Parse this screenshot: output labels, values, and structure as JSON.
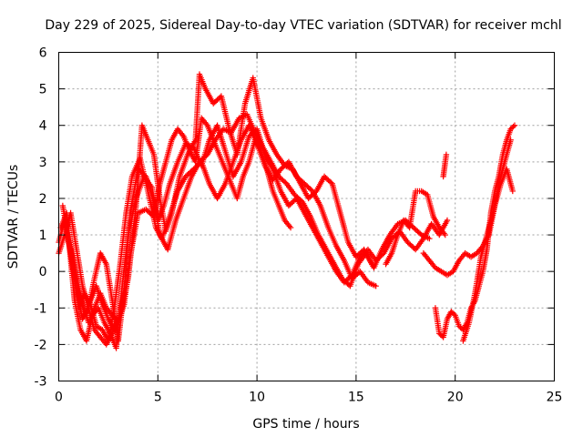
{
  "chart_data": {
    "type": "scatter",
    "title": "Day 229 of 2025, Sidereal Day-to-day VTEC variation (SDTVAR) for receiver mchl",
    "xlabel": "GPS time / hours",
    "ylabel": "SDTVAR / TECUs",
    "xlim": [
      0,
      25
    ],
    "ylim": [
      -3,
      6
    ],
    "xticks": [
      0,
      5,
      10,
      15,
      20,
      25
    ],
    "xtick_labels": [
      "0",
      "5",
      "10",
      "15",
      "20",
      "25"
    ],
    "yticks": [
      -3,
      -2,
      -1,
      0,
      1,
      2,
      3,
      4,
      5,
      6
    ],
    "ytick_labels": [
      "-3",
      "-2",
      "-1",
      "0",
      "1",
      "2",
      "3",
      "4",
      "5",
      "6"
    ],
    "grid": true,
    "marker": "plus",
    "series": [
      {
        "name": "trace-1",
        "color": "#ff0000",
        "x": [
          0.0,
          0.3,
          0.6,
          0.9,
          1.2,
          1.5,
          1.8,
          2.1,
          2.4,
          2.7,
          3.0,
          3.3,
          3.6,
          4.0,
          4.4,
          4.8,
          5.0,
          5.3,
          5.6,
          6.0,
          6.4,
          6.8,
          7.2,
          7.6,
          8.0,
          8.4,
          8.8,
          9.2,
          9.6,
          10.0,
          10.4,
          10.8,
          11.2,
          11.6,
          12.0,
          12.4,
          12.8,
          13.2,
          13.6,
          14.0,
          14.4,
          14.8,
          15.2,
          15.6,
          16.0,
          16.4,
          16.8,
          17.2,
          17.6,
          18.0,
          18.4,
          18.8,
          19.2,
          19.6
        ],
        "y": [
          0.8,
          1.4,
          0.5,
          -0.6,
          -1.3,
          -1.0,
          -0.2,
          0.5,
          0.2,
          -0.8,
          -1.9,
          -0.5,
          1.6,
          2.8,
          2.6,
          1.9,
          1.4,
          1.8,
          2.4,
          3.0,
          3.5,
          3.4,
          2.9,
          3.6,
          4.0,
          3.3,
          2.6,
          3.0,
          3.7,
          3.9,
          3.2,
          2.8,
          2.2,
          1.8,
          2.0,
          1.6,
          1.2,
          0.8,
          0.4,
          0.0,
          -0.3,
          -0.1,
          0.4,
          0.6,
          0.3,
          0.5,
          0.9,
          1.1,
          0.8,
          0.6,
          0.9,
          1.3,
          1.0,
          1.4
        ]
      },
      {
        "name": "trace-2",
        "color": "#ff0000",
        "x": [
          0.2,
          0.5,
          0.8,
          1.1,
          1.4,
          1.7,
          2.0,
          2.3,
          2.6,
          2.9,
          3.2,
          3.5,
          3.9,
          4.3,
          4.7,
          5.1,
          5.5,
          5.9,
          6.3,
          6.7,
          7.1,
          7.5,
          7.9,
          8.3,
          8.7,
          9.1,
          9.5,
          9.9,
          10.3,
          10.7,
          11.1,
          11.5,
          11.9,
          12.3,
          12.7,
          13.1,
          13.5,
          13.9,
          14.3,
          14.7,
          15.1,
          15.5,
          15.9,
          16.3,
          16.7,
          17.1,
          17.5,
          17.9,
          18.3,
          18.7
        ],
        "y": [
          1.8,
          0.9,
          -0.8,
          -1.6,
          -1.9,
          -1.2,
          -1.0,
          -1.4,
          -1.7,
          -2.1,
          -0.4,
          1.0,
          2.0,
          2.6,
          2.3,
          1.0,
          0.6,
          1.4,
          2.0,
          2.6,
          3.0,
          3.2,
          3.6,
          3.9,
          3.8,
          4.2,
          4.3,
          3.8,
          3.4,
          3.0,
          2.6,
          2.4,
          2.1,
          1.9,
          1.5,
          1.0,
          0.6,
          0.2,
          -0.2,
          -0.4,
          0.2,
          0.5,
          0.1,
          0.6,
          1.0,
          1.3,
          1.4,
          1.2,
          1.0,
          0.9
        ]
      },
      {
        "name": "trace-3",
        "color": "#ff0000",
        "x": [
          0.1,
          0.4,
          0.7,
          1.0,
          1.3,
          1.6,
          1.9,
          2.2,
          2.5,
          2.8,
          3.1,
          3.4,
          3.7,
          4.1,
          4.5,
          4.9,
          5.2,
          5.6,
          6.0,
          6.4,
          6.8,
          7.2,
          7.6,
          8.0,
          8.4,
          8.8,
          9.2,
          9.6,
          10.0,
          10.4,
          10.8,
          11.2,
          11.6,
          12.0,
          12.4,
          12.8,
          13.2,
          13.6,
          14.0,
          14.4,
          14.8,
          15.2,
          15.6,
          16.0
        ],
        "y": [
          1.2,
          1.6,
          0.2,
          -1.0,
          -0.6,
          -0.9,
          -1.5,
          -1.6,
          -1.9,
          -1.0,
          0.2,
          1.6,
          2.6,
          3.1,
          2.2,
          1.2,
          0.9,
          1.5,
          2.2,
          2.6,
          2.8,
          3.0,
          2.4,
          2.0,
          2.4,
          3.0,
          3.6,
          4.0,
          3.5,
          2.9,
          2.5,
          2.8,
          3.0,
          2.6,
          2.4,
          2.2,
          1.8,
          1.2,
          0.7,
          0.3,
          -0.2,
          0.0,
          -0.3,
          -0.4
        ]
      },
      {
        "name": "trace-4",
        "color": "#ff0000",
        "x": [
          0.4,
          0.7,
          1.0,
          1.3,
          1.6,
          1.9,
          2.2,
          2.5,
          2.8,
          3.1,
          3.5,
          3.9,
          4.2,
          4.5,
          4.8,
          5.1,
          5.4,
          5.7,
          6.1,
          6.5,
          6.9,
          7.1,
          7.4,
          7.8,
          8.2,
          8.6,
          9.0,
          9.4,
          9.8,
          10.2,
          10.6,
          11.0,
          11.4,
          11.8,
          12.2,
          12.6,
          13.0,
          13.4,
          13.8,
          14.2,
          14.6,
          15.0,
          15.4,
          15.8
        ],
        "y": [
          1.0,
          0.4,
          -0.4,
          -1.2,
          -0.8,
          -0.4,
          -0.9,
          -1.3,
          -1.6,
          -1.2,
          -0.2,
          1.8,
          4.0,
          3.6,
          3.2,
          2.0,
          1.1,
          1.6,
          2.6,
          3.2,
          3.6,
          5.4,
          5.0,
          4.6,
          4.8,
          3.9,
          3.2,
          4.6,
          5.3,
          4.2,
          3.6,
          3.2,
          2.9,
          2.8,
          2.4,
          2.0,
          2.2,
          2.6,
          2.4,
          1.6,
          0.8,
          0.4,
          0.6,
          0.2
        ]
      },
      {
        "name": "trace-5",
        "color": "#ff0000",
        "x": [
          0.6,
          0.9,
          1.2,
          1.5,
          1.8,
          2.1,
          2.4,
          2.7,
          3.0,
          3.3,
          3.6,
          4.0,
          4.4,
          4.8,
          5.1,
          5.4,
          5.7,
          6.0,
          6.3,
          6.6,
          6.9,
          7.2,
          7.5,
          7.8,
          8.1,
          8.4,
          8.7,
          9.0,
          9.3,
          9.6,
          9.9,
          10.2,
          10.5,
          10.8,
          11.1,
          11.4,
          11.7
        ],
        "y": [
          0.6,
          -0.2,
          -0.9,
          -1.4,
          -1.0,
          -0.6,
          -1.0,
          -1.2,
          -1.4,
          -0.9,
          0.4,
          1.6,
          1.7,
          1.5,
          2.4,
          3.0,
          3.6,
          3.9,
          3.7,
          3.3,
          3.0,
          4.2,
          4.0,
          3.6,
          3.2,
          2.8,
          2.4,
          2.0,
          2.6,
          3.0,
          3.6,
          3.3,
          2.8,
          2.2,
          1.8,
          1.4,
          1.2
        ]
      },
      {
        "name": "trace-6",
        "color": "#ff0000",
        "x": [
          0.0,
          0.3,
          0.6,
          0.9,
          1.2,
          1.5,
          1.8,
          2.1,
          2.4,
          2.7,
          3.0,
          3.3
        ],
        "y": [
          0.5,
          1.0,
          1.6,
          0.6,
          -0.4,
          -1.0,
          -1.6,
          -1.8,
          -2.0,
          -1.7,
          -1.3,
          -0.6
        ]
      },
      {
        "name": "trace-7",
        "color": "#ff0000",
        "x": [
          16.5,
          16.8,
          17.1,
          17.4,
          17.7,
          18.0,
          18.3,
          18.6,
          18.9,
          19.2,
          19.5
        ],
        "y": [
          0.2,
          0.5,
          1.0,
          1.4,
          1.2,
          2.2,
          2.2,
          2.1,
          1.5,
          1.2,
          1.0
        ]
      },
      {
        "name": "trace-8",
        "color": "#ff0000",
        "x": [
          19.0,
          19.2,
          19.4,
          19.6,
          19.8,
          20.0,
          20.2,
          20.4,
          20.6,
          20.8,
          21.0,
          21.2,
          21.4,
          21.6,
          21.8,
          22.0,
          22.2,
          22.4,
          22.6,
          22.8,
          23.0
        ],
        "y": [
          -1.0,
          -1.7,
          -1.8,
          -1.3,
          -1.1,
          -1.2,
          -1.5,
          -1.6,
          -1.4,
          -1.0,
          -0.8,
          -0.4,
          0.0,
          0.6,
          1.6,
          2.2,
          2.6,
          3.2,
          3.6,
          3.9,
          4.0
        ]
      },
      {
        "name": "trace-9",
        "color": "#ff0000",
        "x": [
          18.4,
          18.7,
          19.0,
          19.3,
          19.6,
          19.9,
          20.2,
          20.5,
          20.8,
          21.1,
          21.4,
          21.7,
          22.0,
          22.3,
          22.6,
          22.9
        ],
        "y": [
          0.5,
          0.3,
          0.1,
          0.0,
          -0.1,
          0.0,
          0.3,
          0.5,
          0.4,
          0.5,
          0.7,
          1.0,
          1.8,
          2.4,
          2.8,
          2.2
        ]
      },
      {
        "name": "trace-10",
        "color": "#ff0000",
        "x": [
          20.4,
          20.7,
          21.0,
          21.3,
          21.6,
          21.9,
          22.2,
          22.5,
          22.8
        ],
        "y": [
          -1.9,
          -1.4,
          -0.6,
          0.4,
          1.0,
          1.6,
          2.4,
          3.0,
          3.6
        ]
      },
      {
        "name": "trace-11",
        "color": "#ff0000",
        "x": [
          19.4,
          19.55
        ],
        "y": [
          2.6,
          3.2
        ]
      }
    ]
  }
}
